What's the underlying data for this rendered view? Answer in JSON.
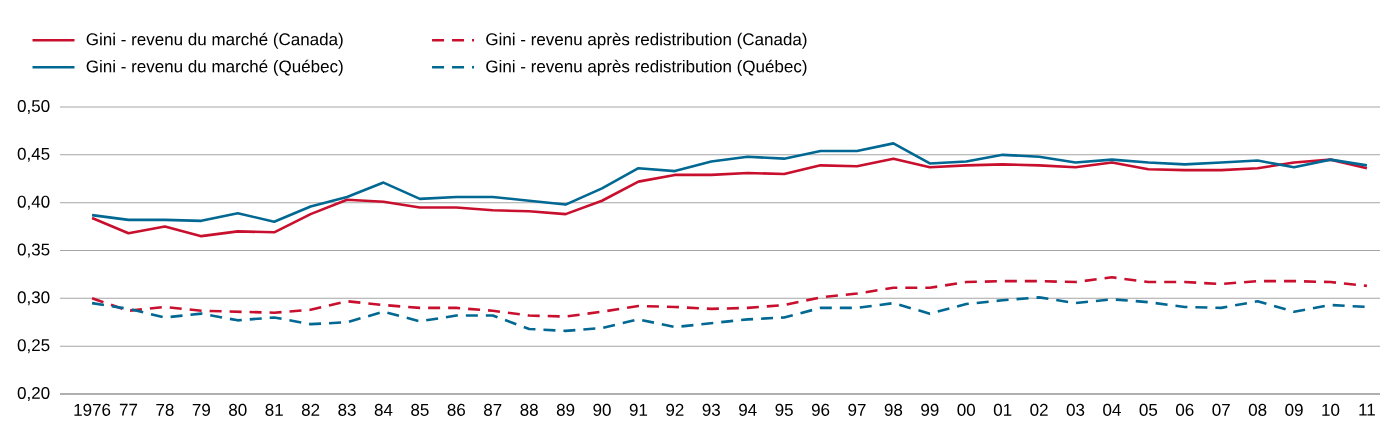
{
  "chart_data": {
    "type": "line",
    "categories": [
      "1976",
      "77",
      "78",
      "79",
      "80",
      "81",
      "82",
      "83",
      "84",
      "85",
      "86",
      "87",
      "88",
      "89",
      "90",
      "91",
      "92",
      "93",
      "94",
      "95",
      "96",
      "97",
      "98",
      "99",
      "00",
      "01",
      "02",
      "03",
      "04",
      "05",
      "06",
      "07",
      "08",
      "09",
      "10",
      "11"
    ],
    "series": [
      {
        "name": "Gini - revenu du marché (Canada)",
        "color": "#c8102e",
        "line_style": "solid",
        "values": [
          0.384,
          0.368,
          0.375,
          0.365,
          0.37,
          0.369,
          0.388,
          0.403,
          0.401,
          0.395,
          0.395,
          0.392,
          0.391,
          0.388,
          0.402,
          0.422,
          0.429,
          0.429,
          0.431,
          0.43,
          0.439,
          0.438,
          0.446,
          0.437,
          0.439,
          0.44,
          0.439,
          0.437,
          0.442,
          0.435,
          0.434,
          0.434,
          0.436,
          0.442,
          0.445,
          0.436
        ]
      },
      {
        "name": "Gini - revenu après redistribution (Canada)",
        "color": "#c8102e",
        "line_style": "dashed",
        "values": [
          0.3,
          0.287,
          0.291,
          0.287,
          0.286,
          0.285,
          0.288,
          0.297,
          0.293,
          0.29,
          0.29,
          0.287,
          0.282,
          0.281,
          0.286,
          0.292,
          0.291,
          0.289,
          0.29,
          0.293,
          0.301,
          0.305,
          0.311,
          0.311,
          0.317,
          0.318,
          0.318,
          0.317,
          0.322,
          0.317,
          0.317,
          0.315,
          0.318,
          0.318,
          0.317,
          0.313
        ]
      },
      {
        "name": "Gini - revenu du marché (Québec)",
        "color": "#006892",
        "line_style": "solid",
        "values": [
          0.387,
          0.382,
          0.382,
          0.381,
          0.389,
          0.38,
          0.396,
          0.406,
          0.421,
          0.404,
          0.406,
          0.406,
          0.402,
          0.398,
          0.415,
          0.436,
          0.433,
          0.443,
          0.448,
          0.446,
          0.454,
          0.454,
          0.462,
          0.441,
          0.443,
          0.45,
          0.448,
          0.442,
          0.445,
          0.442,
          0.44,
          0.442,
          0.444,
          0.437,
          0.445,
          0.439
        ]
      },
      {
        "name": "Gini - revenu après redistribution (Québec)",
        "color": "#006892",
        "line_style": "dashed",
        "values": [
          0.295,
          0.289,
          0.28,
          0.284,
          0.277,
          0.28,
          0.273,
          0.275,
          0.286,
          0.276,
          0.282,
          0.282,
          0.268,
          0.266,
          0.269,
          0.278,
          0.27,
          0.274,
          0.278,
          0.28,
          0.29,
          0.29,
          0.295,
          0.284,
          0.294,
          0.298,
          0.301,
          0.295,
          0.299,
          0.296,
          0.291,
          0.29,
          0.297,
          0.286,
          0.293,
          0.291
        ]
      }
    ],
    "ylim": [
      0.2,
      0.5
    ],
    "yticks": [
      {
        "value": 0.2,
        "label": "0,20"
      },
      {
        "value": 0.25,
        "label": "0,25"
      },
      {
        "value": 0.3,
        "label": "0,30"
      },
      {
        "value": 0.35,
        "label": "0,35"
      },
      {
        "value": 0.4,
        "label": "0,40"
      },
      {
        "value": 0.45,
        "label": "0,45"
      },
      {
        "value": 0.5,
        "label": "0,50"
      }
    ],
    "grid": "y",
    "legend": "top",
    "marker": "none"
  }
}
